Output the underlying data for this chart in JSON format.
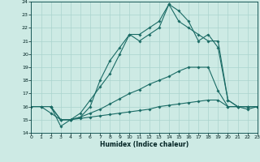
{
  "xlabel": "Humidex (Indice chaleur)",
  "bg_color": "#cdeae4",
  "grid_color": "#aad4ce",
  "line_color": "#1a6b65",
  "xlim_min": 0,
  "xlim_max": 23,
  "ylim_min": 14,
  "ylim_max": 24,
  "xticks": [
    0,
    1,
    2,
    3,
    4,
    5,
    6,
    7,
    8,
    9,
    10,
    11,
    12,
    13,
    14,
    15,
    16,
    17,
    18,
    19,
    20,
    21,
    22,
    23
  ],
  "yticks": [
    14,
    15,
    16,
    17,
    18,
    19,
    20,
    21,
    22,
    23,
    24
  ],
  "lines": [
    {
      "x": [
        0,
        1,
        2,
        3,
        4,
        5,
        6,
        7,
        8,
        9,
        10,
        11,
        12,
        13,
        14,
        15,
        16,
        17,
        18,
        19,
        20,
        21,
        22,
        23
      ],
      "y": [
        16.0,
        16.0,
        16.0,
        15.0,
        15.0,
        15.1,
        15.2,
        15.3,
        15.4,
        15.5,
        15.6,
        15.7,
        15.8,
        16.0,
        16.1,
        16.2,
        16.3,
        16.4,
        16.5,
        16.5,
        16.0,
        16.0,
        16.0,
        16.0
      ]
    },
    {
      "x": [
        0,
        1,
        2,
        3,
        4,
        5,
        6,
        7,
        8,
        9,
        10,
        11,
        12,
        13,
        14,
        15,
        16,
        17,
        18,
        19,
        20,
        21,
        22,
        23
      ],
      "y": [
        16.0,
        16.0,
        15.5,
        15.0,
        15.0,
        15.2,
        15.5,
        15.8,
        16.2,
        16.6,
        17.0,
        17.3,
        17.7,
        18.0,
        18.3,
        18.7,
        19.0,
        19.0,
        19.0,
        17.2,
        16.0,
        16.0,
        16.0,
        16.0
      ]
    },
    {
      "x": [
        2,
        3,
        4,
        5,
        6,
        7,
        8,
        9,
        10,
        11,
        12,
        13,
        14,
        15,
        16,
        17,
        18,
        19,
        20,
        21,
        22,
        23
      ],
      "y": [
        16.0,
        15.0,
        15.0,
        15.5,
        16.5,
        17.5,
        18.5,
        20.0,
        21.5,
        21.0,
        21.5,
        22.0,
        23.8,
        23.3,
        22.5,
        21.0,
        21.5,
        20.5,
        16.5,
        16.0,
        16.0,
        16.0
      ]
    },
    {
      "x": [
        2,
        3,
        4,
        5,
        6,
        7,
        8,
        9,
        10,
        11,
        12,
        13,
        14,
        15,
        16,
        17,
        18,
        19,
        20,
        21,
        22,
        23
      ],
      "y": [
        16.0,
        14.5,
        15.0,
        15.2,
        16.0,
        18.0,
        19.5,
        20.5,
        21.5,
        21.5,
        22.0,
        22.5,
        23.8,
        22.5,
        22.0,
        21.5,
        21.0,
        21.0,
        16.5,
        16.0,
        15.8,
        16.0
      ]
    }
  ]
}
